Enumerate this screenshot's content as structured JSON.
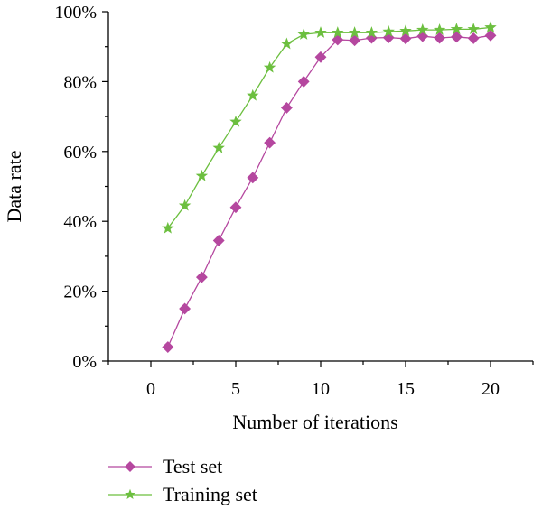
{
  "chart_data": {
    "type": "line",
    "xlabel": "Number of iterations",
    "ylabel": "Data rate",
    "xlim": [
      -2.5,
      22.5
    ],
    "ylim": [
      0,
      100
    ],
    "x_ticks": [
      0,
      5,
      10,
      15,
      20
    ],
    "x_tick_labels": [
      "0",
      "5",
      "10",
      "15",
      "20"
    ],
    "y_ticks": [
      0,
      20,
      40,
      60,
      80,
      100
    ],
    "y_tick_labels": [
      "0%",
      "20%",
      "40%",
      "60%",
      "80%",
      "100%"
    ],
    "grid": false,
    "legend_position": "bottom-left",
    "x": [
      1,
      2,
      3,
      4,
      5,
      6,
      7,
      8,
      9,
      10,
      11,
      12,
      13,
      14,
      15,
      16,
      17,
      18,
      19,
      20
    ],
    "series": [
      {
        "name": "Test set",
        "color": "#b5479f",
        "marker": "diamond",
        "values": [
          4,
          15,
          24,
          34.5,
          44,
          52.5,
          62.5,
          72.5,
          80,
          87,
          92,
          91.8,
          92.5,
          92.6,
          92.3,
          93,
          92.5,
          92.8,
          92.4,
          93.2
        ]
      },
      {
        "name": "Training set",
        "color": "#6cbf3f",
        "marker": "star",
        "values": [
          38,
          44.5,
          53,
          61,
          68.5,
          76,
          84,
          90.8,
          93.5,
          94,
          94,
          94,
          94,
          94.3,
          94.5,
          94.8,
          94.8,
          95,
          95,
          95.5
        ]
      }
    ]
  }
}
